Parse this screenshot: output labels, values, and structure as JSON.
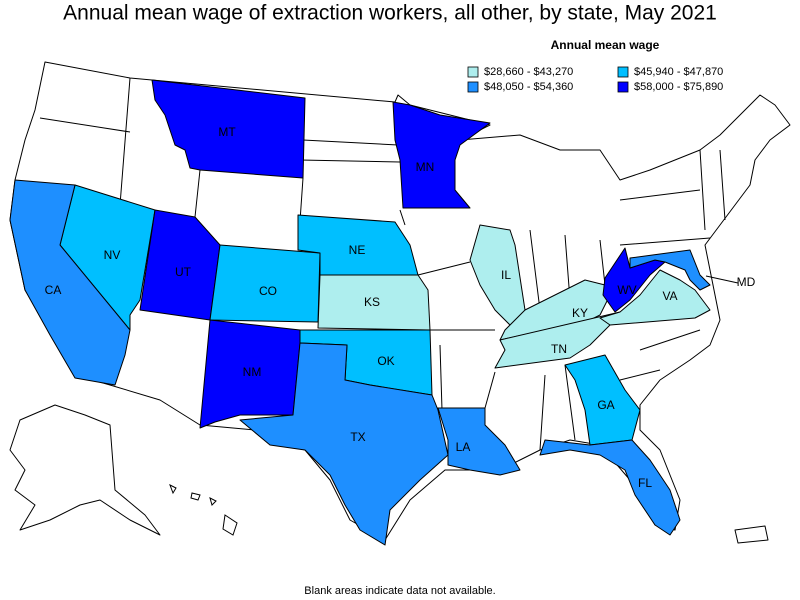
{
  "title": "Annual mean wage of extraction workers, all other, by state, May 2021",
  "legend": {
    "title": "Annual mean wage",
    "bins": [
      {
        "label": "$28,660 - $43,270",
        "color": "#aeeeee"
      },
      {
        "label": "$45,940 - $47,870",
        "color": "#00bfff"
      },
      {
        "label": "$48,050 - $54,360",
        "color": "#1e8fff"
      },
      {
        "label": "$58,000 - $75,890",
        "color": "#0000ff"
      }
    ]
  },
  "states": [
    {
      "abbr": "MT",
      "bin": 3
    },
    {
      "abbr": "MN",
      "bin": 3
    },
    {
      "abbr": "NV",
      "bin": 1
    },
    {
      "abbr": "UT",
      "bin": 3
    },
    {
      "abbr": "CO",
      "bin": 1
    },
    {
      "abbr": "NE",
      "bin": 1
    },
    {
      "abbr": "KS",
      "bin": 0
    },
    {
      "abbr": "OK",
      "bin": 1
    },
    {
      "abbr": "NM",
      "bin": 3
    },
    {
      "abbr": "TX",
      "bin": 2
    },
    {
      "abbr": "CA",
      "bin": 2
    },
    {
      "abbr": "LA",
      "bin": 2
    },
    {
      "abbr": "IL",
      "bin": 0
    },
    {
      "abbr": "KY",
      "bin": 0
    },
    {
      "abbr": "TN",
      "bin": 0
    },
    {
      "abbr": "WV",
      "bin": 3
    },
    {
      "abbr": "VA",
      "bin": 0
    },
    {
      "abbr": "MD",
      "bin": 2
    },
    {
      "abbr": "GA",
      "bin": 1
    },
    {
      "abbr": "FL",
      "bin": 2
    }
  ],
  "footnote": "Blank areas indicate data not available."
}
